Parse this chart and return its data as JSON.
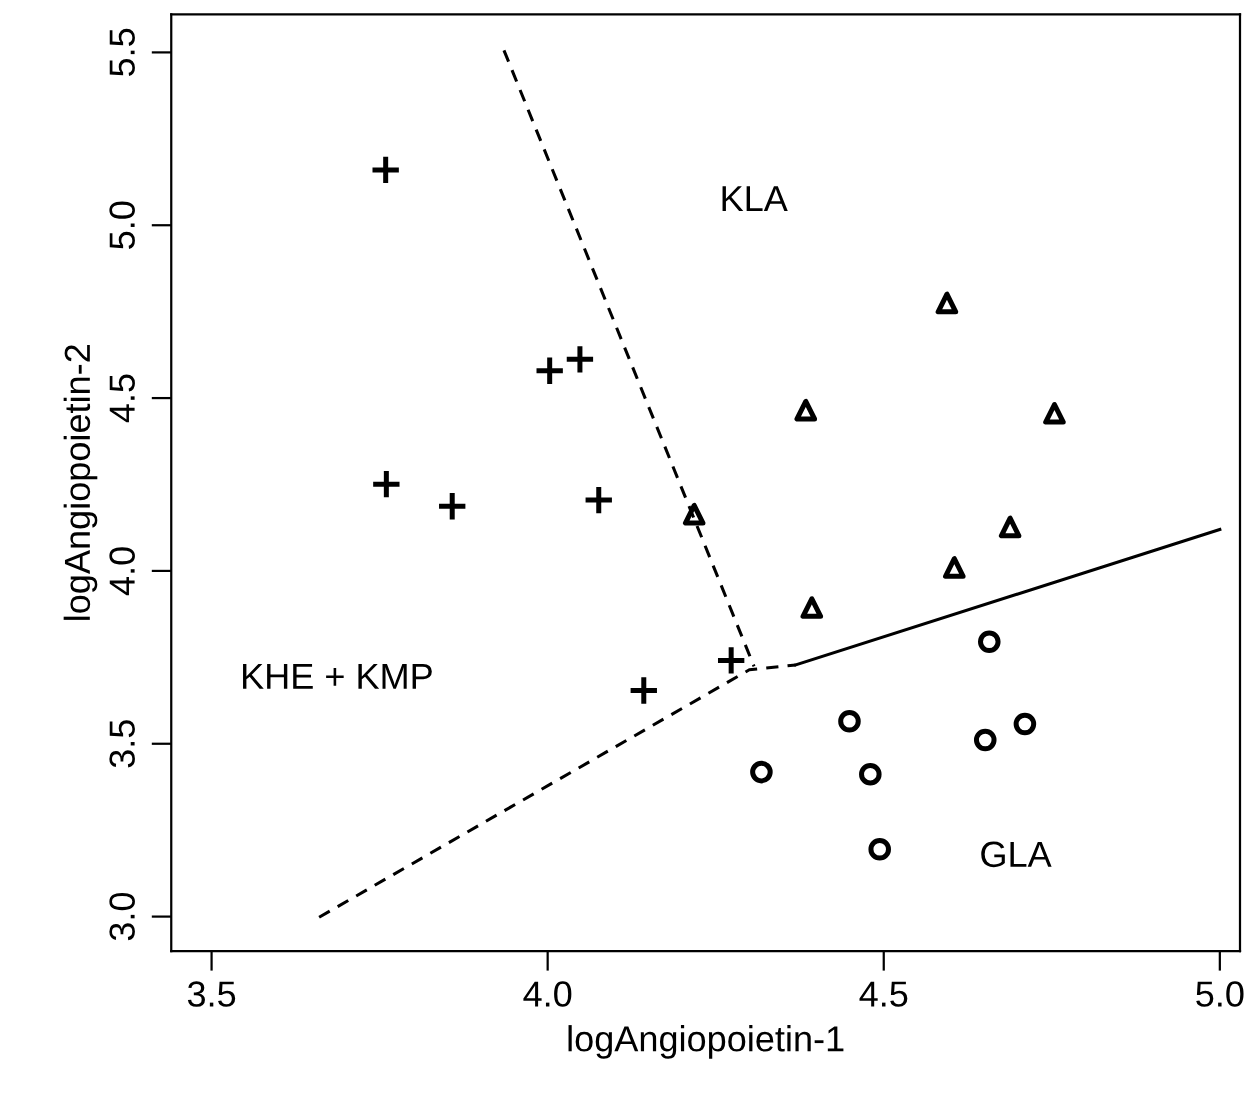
{
  "chart_data": {
    "type": "scatter",
    "xlabel": "logAngiopoietin-1",
    "ylabel": "logAngiopoietin-2",
    "xlim": [
      3.44,
      5.03
    ],
    "ylim": [
      2.9,
      5.61
    ],
    "xticks": [
      3.5,
      {
        "value": 4,
        "label": "4.0"
      },
      4.5,
      {
        "value": 5,
        "label": "5.0"
      }
    ],
    "yticks": [
      {
        "value": 3,
        "label": "3.0"
      },
      3.5,
      {
        "value": 4,
        "label": "4.0"
      },
      4.5,
      {
        "value": 5,
        "label": "5.0"
      },
      5.5
    ],
    "grid": false,
    "series": [
      {
        "marker": "cross",
        "color": "#000000",
        "x": [
          3.759,
          4.003,
          4.048,
          3.76,
          3.858,
          4.076,
          4.143,
          4.273
        ],
        "values": [
          5.16,
          4.579,
          4.612,
          4.251,
          4.187,
          4.205,
          3.654,
          3.741
        ]
      },
      {
        "marker": "triangle",
        "color": "#000000",
        "x": [
          4.594,
          4.384,
          4.754,
          4.218,
          4.688,
          4.605,
          4.393
        ],
        "values": [
          4.775,
          4.465,
          4.456,
          4.164,
          4.127,
          4.01,
          3.894
        ]
      },
      {
        "marker": "circle",
        "color": "#000000",
        "x": [
          4.657,
          4.449,
          4.71,
          4.651,
          4.318,
          4.48,
          4.494
        ],
        "values": [
          3.795,
          3.565,
          3.557,
          3.511,
          3.418,
          3.412,
          3.195
        ]
      },
      {
        "type": "line",
        "line_style": "dashed",
        "marker": "none",
        "color": "#000000",
        "x": [
          3.935,
          4.307
        ],
        "values": [
          5.506,
          3.724
        ]
      },
      {
        "type": "line",
        "line_style": "dashed",
        "marker": "none",
        "color": "#000000",
        "x": [
          3.66,
          4.3,
          4.369
        ],
        "values": [
          2.998,
          3.714,
          3.728
        ]
      },
      {
        "type": "line",
        "line_style": "solid",
        "marker": "none",
        "color": "#000000",
        "x": [
          4.369,
          5.0
        ],
        "values": [
          3.728,
          4.12
        ]
      }
    ],
    "annotations": [
      "KLA",
      "KHE + KMP",
      "GLA"
    ]
  }
}
